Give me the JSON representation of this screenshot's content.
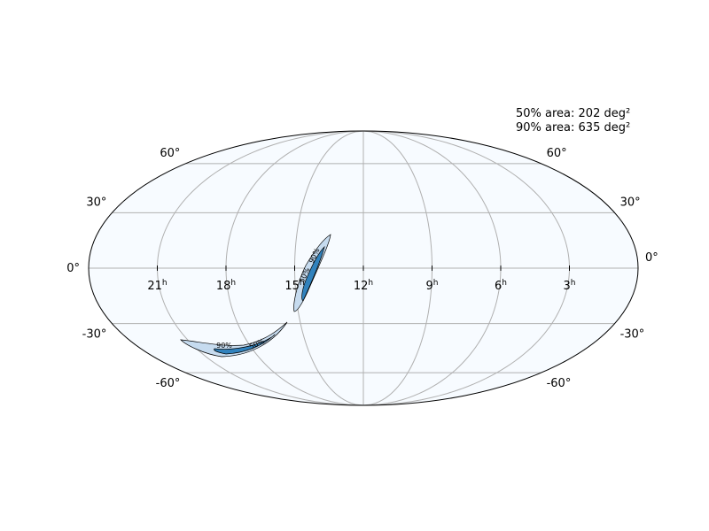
{
  "projection": "mollweide",
  "annotations": [
    "50% area: 202 deg²",
    "90% area: 635 deg²"
  ],
  "ra_ticks": [
    {
      "value": 21,
      "unit": "h"
    },
    {
      "value": 18,
      "unit": "h"
    },
    {
      "value": 15,
      "unit": "h"
    },
    {
      "value": 12,
      "unit": "h"
    },
    {
      "value": 9,
      "unit": "h"
    },
    {
      "value": 6,
      "unit": "h"
    },
    {
      "value": 3,
      "unit": "h"
    }
  ],
  "dec_ticks": [
    {
      "value": 60,
      "label": "60°"
    },
    {
      "value": 30,
      "label": "30°"
    },
    {
      "value": 0,
      "label": "0°"
    },
    {
      "value": -30,
      "label": "-30°"
    },
    {
      "value": -60,
      "label": "-60°"
    }
  ],
  "contour_labels": [
    "90%",
    "50%"
  ]
}
